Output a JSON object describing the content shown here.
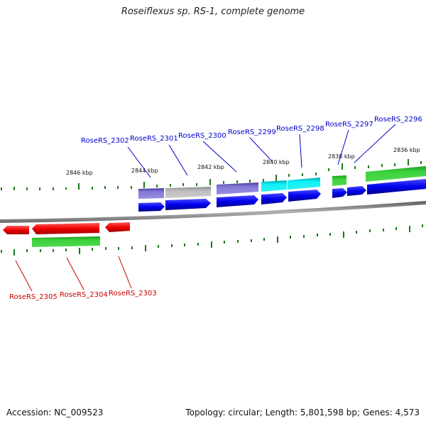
{
  "header": {
    "title": "Roseiflexus sp. RS-1, complete genome"
  },
  "footer": {
    "accession": "Accession: NC_009523",
    "summary": "Topology: circular; Length: 5,801,598 bp; Genes: 4,573"
  },
  "colors": {
    "label_top": "#0000cc",
    "label_bottom": "#cc0000",
    "forward_gene": "#0000ee",
    "reverse_gene": "#ee0000",
    "feature_purple": "#7b6fcc",
    "feature_gray": "#b4b4b4",
    "feature_cyan": "#00e0e8",
    "feature_green": "#2cc52c",
    "tick": "#1a7a1a",
    "backbone": "#888888"
  },
  "kbp_labels": [
    "2846 kbp",
    "2844 kbp",
    "2842 kbp",
    "2840 kbp",
    "2838 kbp",
    "2836 kbp"
  ],
  "top_genes": [
    "RoseRS_2302",
    "RoseRS_2301",
    "RoseRS_2300",
    "RoseRS_2299",
    "RoseRS_2298",
    "RoseRS_2297",
    "RoseRS_2296"
  ],
  "bottom_genes": [
    "RoseRS_2305",
    "RoseRS_2304",
    "RoseRS_2303"
  ]
}
